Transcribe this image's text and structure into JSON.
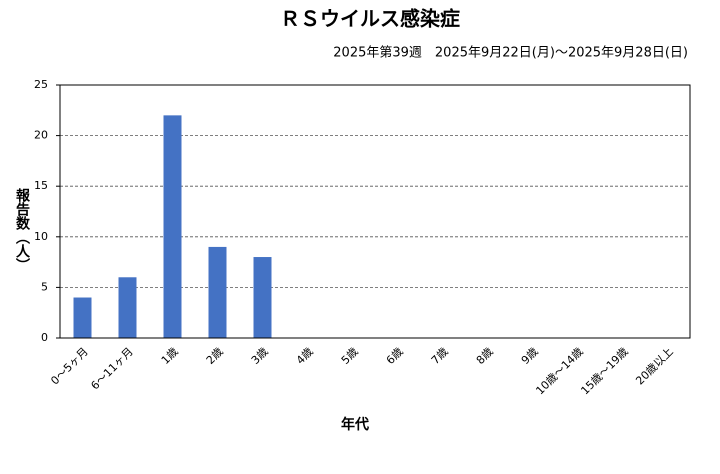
{
  "chart_data": {
    "type": "bar",
    "title": "ＲＳウイルス感染症",
    "subtitle": "2025年第39週　2025年9月22日(月)～2025年9月28日(日)",
    "x_label": "年代",
    "y_label": "報告数（人）",
    "categories": [
      "0～5ヶ月",
      "6～11ヶ月",
      "1歳",
      "2歳",
      "3歳",
      "4歳",
      "5歳",
      "6歳",
      "7歳",
      "8歳",
      "9歳",
      "10歳～14歳",
      "15歳～19歳",
      "20歳以上"
    ],
    "values": [
      4,
      6,
      22,
      9,
      8,
      0,
      0,
      0,
      0,
      0,
      0,
      0,
      0,
      0
    ],
    "color": "#4472c4",
    "ylim": [
      0,
      25
    ],
    "yticks": [
      0,
      5,
      10,
      15,
      20,
      25
    ],
    "grid": true
  }
}
